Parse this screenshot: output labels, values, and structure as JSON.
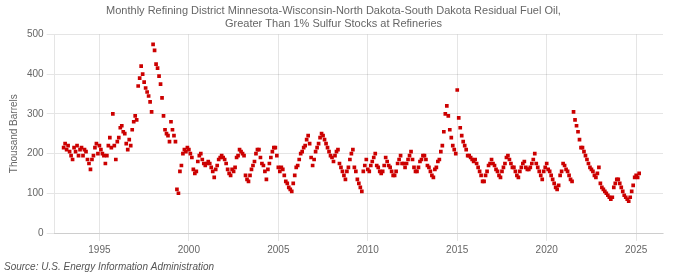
{
  "chart_data": {
    "type": "scatter",
    "title": "Monthly Refining District Minnesota-Wisconsin-North Dakota-South Dakota Residual Fuel Oil,\nGreater Than 1% Sulfur Stocks at Refineries",
    "y_label": "Thousand Barrels",
    "source": "Source: U.S. Energy Information Administration",
    "color": "#cc0000",
    "marker": "square",
    "grid": true,
    "xlim": [
      1992.5,
      2026.5
    ],
    "xticks": [
      1995,
      2000,
      2005,
      2010,
      2015,
      2020,
      2025
    ],
    "ylim": [
      0,
      500
    ],
    "yticks": [
      0,
      100,
      200,
      300,
      400,
      500
    ],
    "x": [
      1993.0,
      1993.083,
      1993.167,
      1993.25,
      1993.333,
      1993.417,
      1993.5,
      1993.583,
      1993.667,
      1993.75,
      1993.833,
      1993.917,
      1994.0,
      1994.083,
      1994.167,
      1994.25,
      1994.333,
      1994.417,
      1994.5,
      1994.583,
      1994.667,
      1994.75,
      1994.833,
      1994.917,
      1995.0,
      1995.083,
      1995.167,
      1995.25,
      1995.333,
      1995.417,
      1995.5,
      1995.583,
      1995.667,
      1995.75,
      1995.833,
      1995.917,
      1996.0,
      1996.083,
      1996.167,
      1996.25,
      1996.333,
      1996.417,
      1996.5,
      1996.583,
      1996.667,
      1996.75,
      1996.833,
      1996.917,
      1997.0,
      1997.083,
      1997.167,
      1997.25,
      1997.333,
      1997.417,
      1997.5,
      1997.583,
      1997.667,
      1997.75,
      1997.833,
      1997.917,
      1998.0,
      1998.083,
      1998.167,
      1998.25,
      1998.333,
      1998.417,
      1998.5,
      1998.583,
      1998.667,
      1998.75,
      1998.833,
      1998.917,
      1999.0,
      1999.083,
      1999.167,
      1999.25,
      1999.333,
      1999.417,
      1999.5,
      1999.583,
      1999.667,
      1999.75,
      1999.833,
      1999.917,
      2000.0,
      2000.083,
      2000.167,
      2000.25,
      2000.333,
      2000.417,
      2000.5,
      2000.583,
      2000.667,
      2000.75,
      2000.833,
      2000.917,
      2001.0,
      2001.083,
      2001.167,
      2001.25,
      2001.333,
      2001.417,
      2001.5,
      2001.583,
      2001.667,
      2001.75,
      2001.833,
      2001.917,
      2002.0,
      2002.083,
      2002.167,
      2002.25,
      2002.333,
      2002.417,
      2002.5,
      2002.583,
      2002.667,
      2002.75,
      2002.833,
      2002.917,
      2003.0,
      2003.083,
      2003.167,
      2003.25,
      2003.333,
      2003.417,
      2003.5,
      2003.583,
      2003.667,
      2003.75,
      2003.833,
      2003.917,
      2004.0,
      2004.083,
      2004.167,
      2004.25,
      2004.333,
      2004.417,
      2004.5,
      2004.583,
      2004.667,
      2004.75,
      2004.833,
      2004.917,
      2005.0,
      2005.083,
      2005.167,
      2005.25,
      2005.333,
      2005.417,
      2005.5,
      2005.583,
      2005.667,
      2005.75,
      2005.833,
      2005.917,
      2006.0,
      2006.083,
      2006.167,
      2006.25,
      2006.333,
      2006.417,
      2006.5,
      2006.583,
      2006.667,
      2006.75,
      2006.833,
      2006.917,
      2007.0,
      2007.083,
      2007.167,
      2007.25,
      2007.333,
      2007.417,
      2007.5,
      2007.583,
      2007.667,
      2007.75,
      2007.833,
      2007.917,
      2008.0,
      2008.083,
      2008.167,
      2008.25,
      2008.333,
      2008.417,
      2008.5,
      2008.583,
      2008.667,
      2008.75,
      2008.833,
      2008.917,
      2009.0,
      2009.083,
      2009.167,
      2009.25,
      2009.333,
      2009.417,
      2009.5,
      2009.583,
      2009.667,
      2009.75,
      2009.833,
      2009.917,
      2010.0,
      2010.083,
      2010.167,
      2010.25,
      2010.333,
      2010.417,
      2010.5,
      2010.583,
      2010.667,
      2010.75,
      2010.833,
      2010.917,
      2011.0,
      2011.083,
      2011.167,
      2011.25,
      2011.333,
      2011.417,
      2011.5,
      2011.583,
      2011.667,
      2011.75,
      2011.833,
      2011.917,
      2012.0,
      2012.083,
      2012.167,
      2012.25,
      2012.333,
      2012.417,
      2012.5,
      2012.583,
      2012.667,
      2012.75,
      2012.833,
      2012.917,
      2013.0,
      2013.083,
      2013.167,
      2013.25,
      2013.333,
      2013.417,
      2013.5,
      2013.583,
      2013.667,
      2013.75,
      2013.833,
      2013.917,
      2014.0,
      2014.083,
      2014.167,
      2014.25,
      2014.333,
      2014.417,
      2014.5,
      2014.583,
      2014.667,
      2014.75,
      2014.833,
      2014.917,
      2015.0,
      2015.083,
      2015.167,
      2015.25,
      2015.333,
      2015.417,
      2015.5,
      2015.583,
      2015.667,
      2015.75,
      2015.833,
      2015.917,
      2016.0,
      2016.083,
      2016.167,
      2016.25,
      2016.333,
      2016.417,
      2016.5,
      2016.583,
      2016.667,
      2016.75,
      2016.833,
      2016.917,
      2017.0,
      2017.083,
      2017.167,
      2017.25,
      2017.333,
      2017.417,
      2017.5,
      2017.583,
      2017.667,
      2017.75,
      2017.833,
      2017.917,
      2018.0,
      2018.083,
      2018.167,
      2018.25,
      2018.333,
      2018.417,
      2018.5,
      2018.583,
      2018.667,
      2018.75,
      2018.833,
      2018.917,
      2019.0,
      2019.083,
      2019.167,
      2019.25,
      2019.333,
      2019.417,
      2019.5,
      2019.583,
      2019.667,
      2019.75,
      2019.833,
      2019.917,
      2020.0,
      2020.083,
      2020.167,
      2020.25,
      2020.333,
      2020.417,
      2020.5,
      2020.583,
      2020.667,
      2020.75,
      2020.833,
      2020.917,
      2021.0,
      2021.083,
      2021.167,
      2021.25,
      2021.333,
      2021.417,
      2021.5,
      2021.583,
      2021.667,
      2021.75,
      2021.833,
      2021.917,
      2022.0,
      2022.083,
      2022.167,
      2022.25,
      2022.333,
      2022.417,
      2022.5,
      2022.583,
      2022.667,
      2022.75,
      2022.833,
      2022.917,
      2023.0,
      2023.083,
      2023.167,
      2023.25,
      2023.333,
      2023.417,
      2023.5,
      2023.583,
      2023.667,
      2023.75,
      2023.833,
      2023.917,
      2024.0,
      2024.083,
      2024.167,
      2024.25,
      2024.333,
      2024.417,
      2024.5,
      2024.583,
      2024.667,
      2024.75,
      2024.833,
      2024.917,
      2025.0,
      2025.083,
      2025.167
    ],
    "values": [
      215,
      225,
      210,
      220,
      205,
      195,
      185,
      215,
      205,
      220,
      195,
      210,
      215,
      195,
      210,
      205,
      185,
      175,
      160,
      185,
      195,
      215,
      225,
      200,
      220,
      210,
      200,
      195,
      175,
      195,
      220,
      240,
      215,
      300,
      220,
      185,
      230,
      240,
      265,
      270,
      255,
      250,
      225,
      210,
      235,
      220,
      260,
      280,
      295,
      285,
      370,
      390,
      420,
      400,
      380,
      365,
      355,
      345,
      330,
      305,
      475,
      460,
      425,
      415,
      395,
      375,
      340,
      295,
      260,
      250,
      245,
      230,
      280,
      260,
      245,
      230,
      110,
      100,
      155,
      170,
      200,
      210,
      205,
      215,
      210,
      200,
      190,
      160,
      150,
      155,
      180,
      195,
      200,
      185,
      175,
      170,
      175,
      180,
      175,
      165,
      155,
      140,
      160,
      170,
      185,
      190,
      195,
      190,
      185,
      175,
      160,
      150,
      145,
      160,
      155,
      165,
      190,
      195,
      210,
      205,
      200,
      195,
      145,
      135,
      130,
      145,
      160,
      170,
      180,
      200,
      210,
      210,
      190,
      175,
      170,
      155,
      135,
      160,
      175,
      190,
      205,
      215,
      215,
      195,
      165,
      155,
      165,
      160,
      145,
      130,
      125,
      115,
      110,
      105,
      125,
      145,
      165,
      170,
      185,
      200,
      205,
      215,
      220,
      235,
      245,
      225,
      190,
      170,
      185,
      205,
      215,
      225,
      240,
      250,
      245,
      235,
      225,
      215,
      205,
      195,
      190,
      180,
      195,
      205,
      210,
      175,
      165,
      155,
      145,
      135,
      155,
      165,
      185,
      200,
      210,
      165,
      155,
      135,
      125,
      115,
      105,
      155,
      170,
      185,
      160,
      155,
      170,
      180,
      190,
      200,
      170,
      165,
      155,
      150,
      155,
      170,
      190,
      180,
      170,
      165,
      155,
      145,
      145,
      155,
      175,
      185,
      195,
      175,
      175,
      165,
      175,
      185,
      195,
      205,
      185,
      165,
      155,
      155,
      165,
      180,
      185,
      195,
      195,
      185,
      170,
      165,
      155,
      145,
      140,
      160,
      165,
      180,
      185,
      205,
      220,
      255,
      300,
      320,
      295,
      260,
      240,
      220,
      210,
      200,
      360,
      290,
      265,
      245,
      230,
      220,
      210,
      195,
      195,
      190,
      185,
      180,
      185,
      175,
      165,
      155,
      145,
      130,
      130,
      145,
      155,
      170,
      175,
      185,
      175,
      170,
      160,
      155,
      145,
      140,
      155,
      165,
      175,
      190,
      195,
      185,
      175,
      165,
      165,
      155,
      145,
      140,
      155,
      165,
      175,
      180,
      165,
      160,
      160,
      165,
      175,
      185,
      200,
      175,
      165,
      155,
      145,
      135,
      155,
      165,
      175,
      160,
      155,
      145,
      135,
      125,
      115,
      110,
      120,
      145,
      155,
      175,
      170,
      160,
      155,
      145,
      135,
      130,
      305,
      285,
      270,
      255,
      235,
      215,
      215,
      205,
      195,
      185,
      175,
      165,
      160,
      155,
      145,
      140,
      150,
      165,
      125,
      115,
      110,
      105,
      100,
      95,
      90,
      85,
      90,
      115,
      125,
      135,
      135,
      125,
      115,
      105,
      95,
      90,
      85,
      80,
      90,
      105,
      120,
      140,
      145,
      140,
      150
    ]
  }
}
